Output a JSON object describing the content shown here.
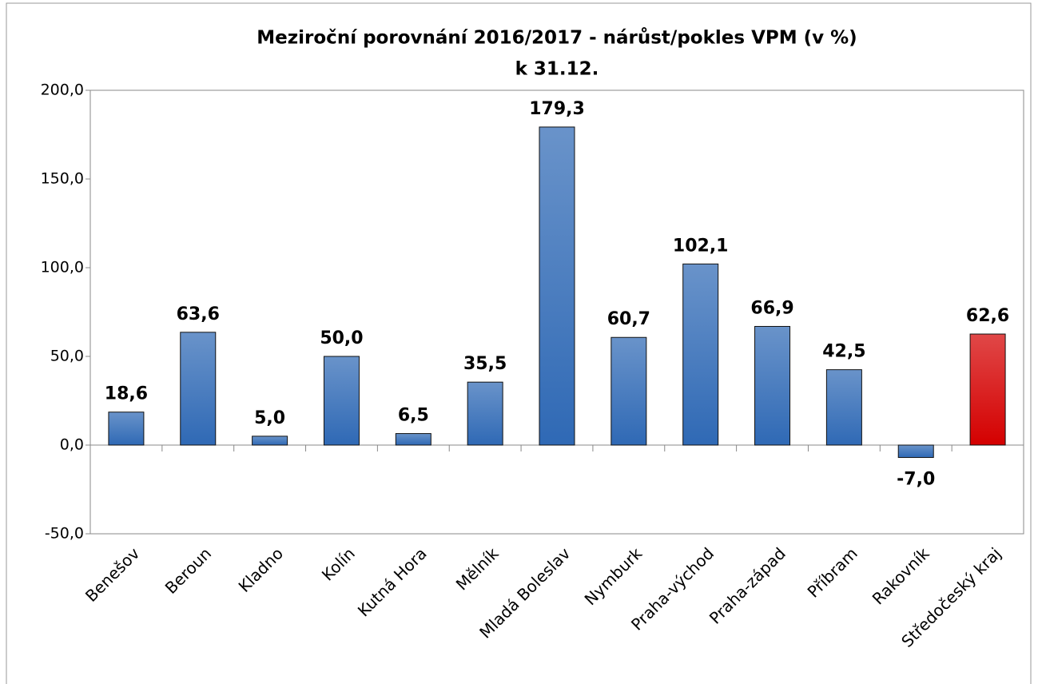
{
  "chart_data": {
    "type": "bar",
    "title": "Meziroční porovnání 2016/2017 - nárůst/pokles VPM (v %)",
    "subtitle": "k 31.12.",
    "categories": [
      "Benešov",
      "Beroun",
      "Kladno",
      "Kolín",
      "Kutná Hora",
      "Mělník",
      "Mladá Boleslav",
      "Nymburk",
      "Praha-východ",
      "Praha-západ",
      "Příbram",
      "Rakovník",
      "Středočeský kraj"
    ],
    "values": [
      18.6,
      63.6,
      5.0,
      50.0,
      6.5,
      35.5,
      179.3,
      60.7,
      102.1,
      66.9,
      42.5,
      -7.0,
      62.6
    ],
    "value_labels": [
      "18,6",
      "63,6",
      "5,0",
      "50,0",
      "6,5",
      "35,5",
      "179,3",
      "60,7",
      "102,1",
      "66,9",
      "42,5",
      "-7,0",
      "62,6"
    ],
    "colors": [
      "#2f69b5",
      "#2f69b5",
      "#2f69b5",
      "#2f69b5",
      "#2f69b5",
      "#2f69b5",
      "#2f69b5",
      "#2f69b5",
      "#2f69b5",
      "#2f69b5",
      "#2f69b5",
      "#2f69b5",
      "#d40000"
    ],
    "ylim": [
      -50,
      200
    ],
    "yticks": [
      {
        "value": -50,
        "label": "-50,0"
      },
      {
        "value": 0,
        "label": "0,0"
      },
      {
        "value": 50,
        "label": "50,0"
      },
      {
        "value": 100,
        "label": "100,0"
      },
      {
        "value": 150,
        "label": "150,0"
      },
      {
        "value": 200,
        "label": "200,0"
      }
    ],
    "grid": false
  }
}
